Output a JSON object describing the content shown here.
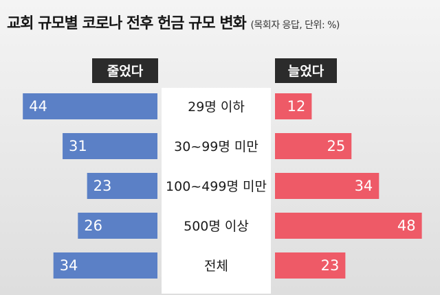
{
  "chart_data": {
    "type": "bar",
    "title": "교회 규모별 코로나 전후 헌금 규모 변화",
    "subtitle": "(목회자 응답, 단위: %)",
    "categories": [
      "29명 이하",
      "30~99명 미만",
      "100~499명 미만",
      "500명 이상",
      "전체"
    ],
    "series": [
      {
        "name": "줄었다",
        "values": [
          44,
          31,
          23,
          26,
          34
        ],
        "color": "#5b80c6"
      },
      {
        "name": "늘었다",
        "values": [
          12,
          25,
          34,
          48,
          23
        ],
        "color": "#ee5a67"
      }
    ],
    "xlim": [
      0,
      50
    ],
    "grid": false,
    "legend": "top"
  }
}
